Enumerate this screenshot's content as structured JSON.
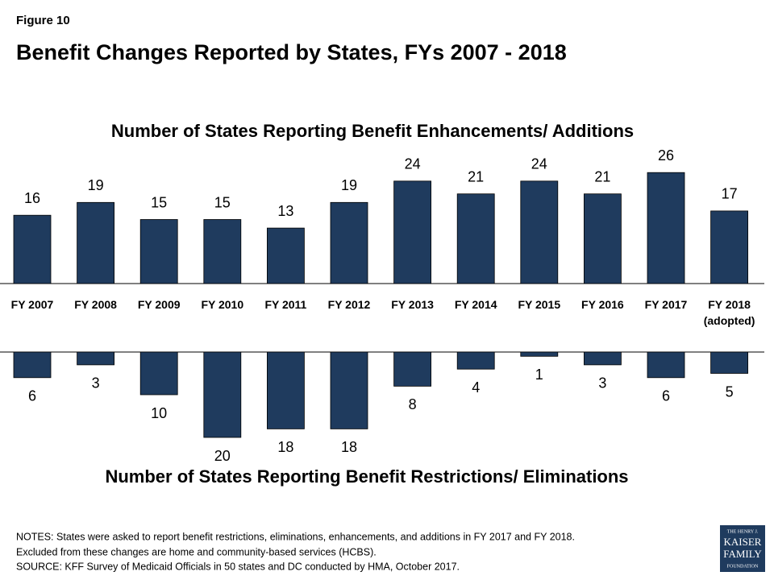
{
  "figure_label": "Figure 10",
  "title": "Benefit Changes Reported by States, FYs 2007 - 2018",
  "chart_data": {
    "type": "bar",
    "categories": [
      "FY 2007",
      "FY 2008",
      "FY 2009",
      "FY 2010",
      "FY 2011",
      "FY 2012",
      "FY 2013",
      "FY 2014",
      "FY 2015",
      "FY 2016",
      "FY 2017",
      "FY 2018 (adopted)"
    ],
    "series": [
      {
        "name": "Number of States Reporting Benefit Enhancements/ Additions",
        "color": "#1f3b5e",
        "values": [
          16,
          19,
          15,
          15,
          13,
          19,
          24,
          21,
          24,
          21,
          26,
          17
        ]
      },
      {
        "name": "Number of States Reporting Benefit Restrictions/ Eliminations",
        "color": "#1f3b5e",
        "values": [
          6,
          3,
          10,
          20,
          18,
          18,
          8,
          4,
          1,
          3,
          6,
          5
        ]
      }
    ]
  },
  "notes": [
    "NOTES: States were asked to report benefit restrictions, eliminations, enhancements, and additions in FY 2017 and FY 2018.",
    "Excluded from these changes are home and community-based services (HCBS).",
    "SOURCE: KFF Survey of Medicaid Officials in 50 states and DC conducted by HMA, October 2017."
  ],
  "logo": [
    "THE HENRY J.",
    "KAISER",
    "FAMILY",
    "FOUNDATION"
  ]
}
